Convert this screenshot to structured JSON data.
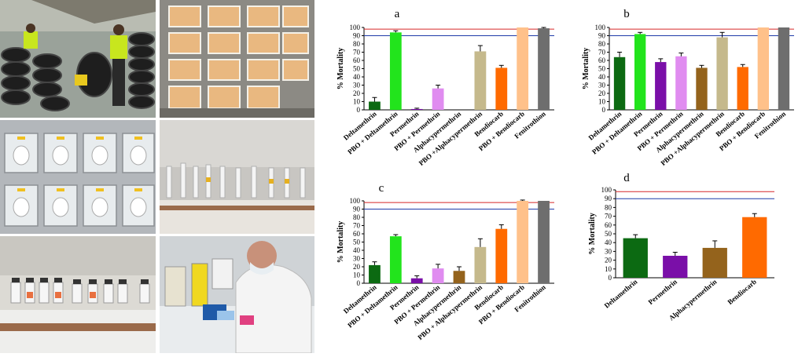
{
  "figure": {
    "panel_letters": [
      "a",
      "b",
      "c",
      "d"
    ],
    "ylabel": "% Mortality",
    "reference_lines": [
      {
        "value": 98,
        "color": "#d62728"
      },
      {
        "value": 90,
        "color": "#1f3aa8"
      }
    ]
  },
  "photos": [
    {
      "name": "photo-tyre-collection"
    },
    {
      "name": "photo-larval-rearing-trays"
    },
    {
      "name": "photo-mosquito-cages"
    },
    {
      "name": "photo-bioassay-tubes"
    },
    {
      "name": "photo-insecticide-bottles"
    },
    {
      "name": "photo-lab-technician"
    }
  ],
  "colors": {
    "Deltamethrin": "#0c6a12",
    "PBO + Deltamethrin": "#22e41c",
    "Permethrin": "#7a0fa8",
    "PBO + Permethrin": "#e08cf0",
    "Alphacypermethrin": "#94631c",
    "PBO +Alphacypermethrin": "#c5b98c",
    "PBO + Alphacypermethrin": "#c5b98c",
    "Bendiocarb": "#ff6a00",
    "PBO + Bendiocarb": "#ffc18a",
    "Fenitrothion": "#6e6e6e"
  },
  "chart_data": [
    {
      "panel": "a",
      "type": "bar",
      "ylabel": "% Mortality",
      "ylim": [
        0,
        100
      ],
      "yticks": [
        0,
        10,
        20,
        30,
        40,
        50,
        60,
        70,
        80,
        90,
        100
      ],
      "categories": [
        "Deltamethrin",
        "PBO + Deltamethrin",
        "Permethrin",
        "PBO + Permethrin",
        "Alphacypermethrin",
        "PBO +Alphacypermethrin",
        "Bendiocarb",
        "PBO + Bendiocarb",
        "Fenitrothion"
      ],
      "values": [
        10,
        94,
        1,
        26,
        0,
        71,
        51,
        100,
        99
      ],
      "errors": [
        5,
        2,
        1,
        4,
        0,
        7,
        3,
        0,
        1
      ]
    },
    {
      "panel": "b",
      "type": "bar",
      "ylabel": "% Mortality",
      "ylim": [
        0,
        100
      ],
      "yticks": [
        0,
        10,
        20,
        30,
        40,
        50,
        60,
        70,
        80,
        90,
        100
      ],
      "categories": [
        "Deltamethrin",
        "PBO + Deltamethrin",
        "Permethrin",
        "PBO + Permethrin",
        "Alphacypermethrin",
        "PBO +Alphacypermethrin",
        "Bendiocarb",
        "PBO + Bendiocarb",
        "Fenitrothion"
      ],
      "values": [
        64,
        92,
        58,
        65,
        51,
        88,
        52,
        100,
        100
      ],
      "errors": [
        6,
        2,
        4,
        4,
        3,
        6,
        3,
        0,
        0
      ]
    },
    {
      "panel": "c",
      "type": "bar",
      "ylabel": "% Mortality",
      "ylim": [
        0,
        100
      ],
      "yticks": [
        0,
        10,
        20,
        30,
        40,
        50,
        60,
        70,
        80,
        90,
        100
      ],
      "categories": [
        "Deltamethrin",
        "PBO + Deltamethrin",
        "Permethrin",
        "PBO + Permethrin",
        "Alphacypermethrin",
        "PBO + Alphacypermethrin",
        "Bendiocarb",
        "PBO + Bendiocarb",
        "Fenitrothion"
      ],
      "values": [
        22,
        57,
        6,
        18,
        15,
        44,
        66,
        100,
        100
      ],
      "errors": [
        4,
        2,
        3,
        5,
        5,
        10,
        5,
        1,
        0
      ]
    },
    {
      "panel": "d",
      "type": "bar",
      "ylabel": "% Mortality",
      "ylim": [
        0,
        100
      ],
      "yticks": [
        0,
        10,
        20,
        30,
        40,
        50,
        60,
        70,
        80,
        90,
        100
      ],
      "categories": [
        "Deltamethrin",
        "Permethrin",
        "Alphacypermethrin",
        "Bendiocarb"
      ],
      "values": [
        45,
        25,
        34,
        69
      ],
      "errors": [
        4,
        4,
        8,
        4
      ]
    }
  ]
}
